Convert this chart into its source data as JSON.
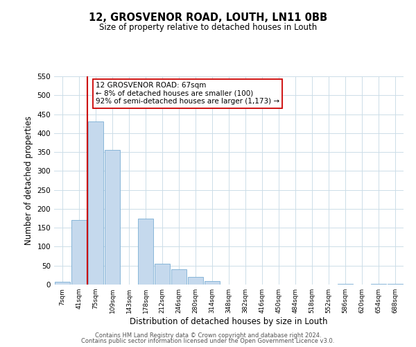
{
  "title": "12, GROSVENOR ROAD, LOUTH, LN11 0BB",
  "subtitle": "Size of property relative to detached houses in Louth",
  "xlabel": "Distribution of detached houses by size in Louth",
  "ylabel": "Number of detached properties",
  "bin_labels": [
    "7sqm",
    "41sqm",
    "75sqm",
    "109sqm",
    "143sqm",
    "178sqm",
    "212sqm",
    "246sqm",
    "280sqm",
    "314sqm",
    "348sqm",
    "382sqm",
    "416sqm",
    "450sqm",
    "484sqm",
    "518sqm",
    "552sqm",
    "586sqm",
    "620sqm",
    "654sqm",
    "688sqm"
  ],
  "bar_heights": [
    8,
    170,
    430,
    355,
    0,
    175,
    55,
    40,
    20,
    10,
    0,
    0,
    0,
    0,
    0,
    0,
    0,
    1,
    0,
    1,
    2
  ],
  "bar_color": "#c5d9ed",
  "bar_edge_color": "#7aadd4",
  "ylim": [
    0,
    550
  ],
  "yticks": [
    0,
    50,
    100,
    150,
    200,
    250,
    300,
    350,
    400,
    450,
    500,
    550
  ],
  "red_line_color": "#cc0000",
  "red_line_bin": 1.5,
  "annotation_text": "12 GROSVENOR ROAD: 67sqm\n← 8% of detached houses are smaller (100)\n92% of semi-detached houses are larger (1,173) →",
  "annotation_box_color": "#ffffff",
  "annotation_box_edge_color": "#cc0000",
  "footer_line1": "Contains HM Land Registry data © Crown copyright and database right 2024.",
  "footer_line2": "Contains public sector information licensed under the Open Government Licence v3.0.",
  "background_color": "#ffffff",
  "grid_color": "#ccdde8"
}
